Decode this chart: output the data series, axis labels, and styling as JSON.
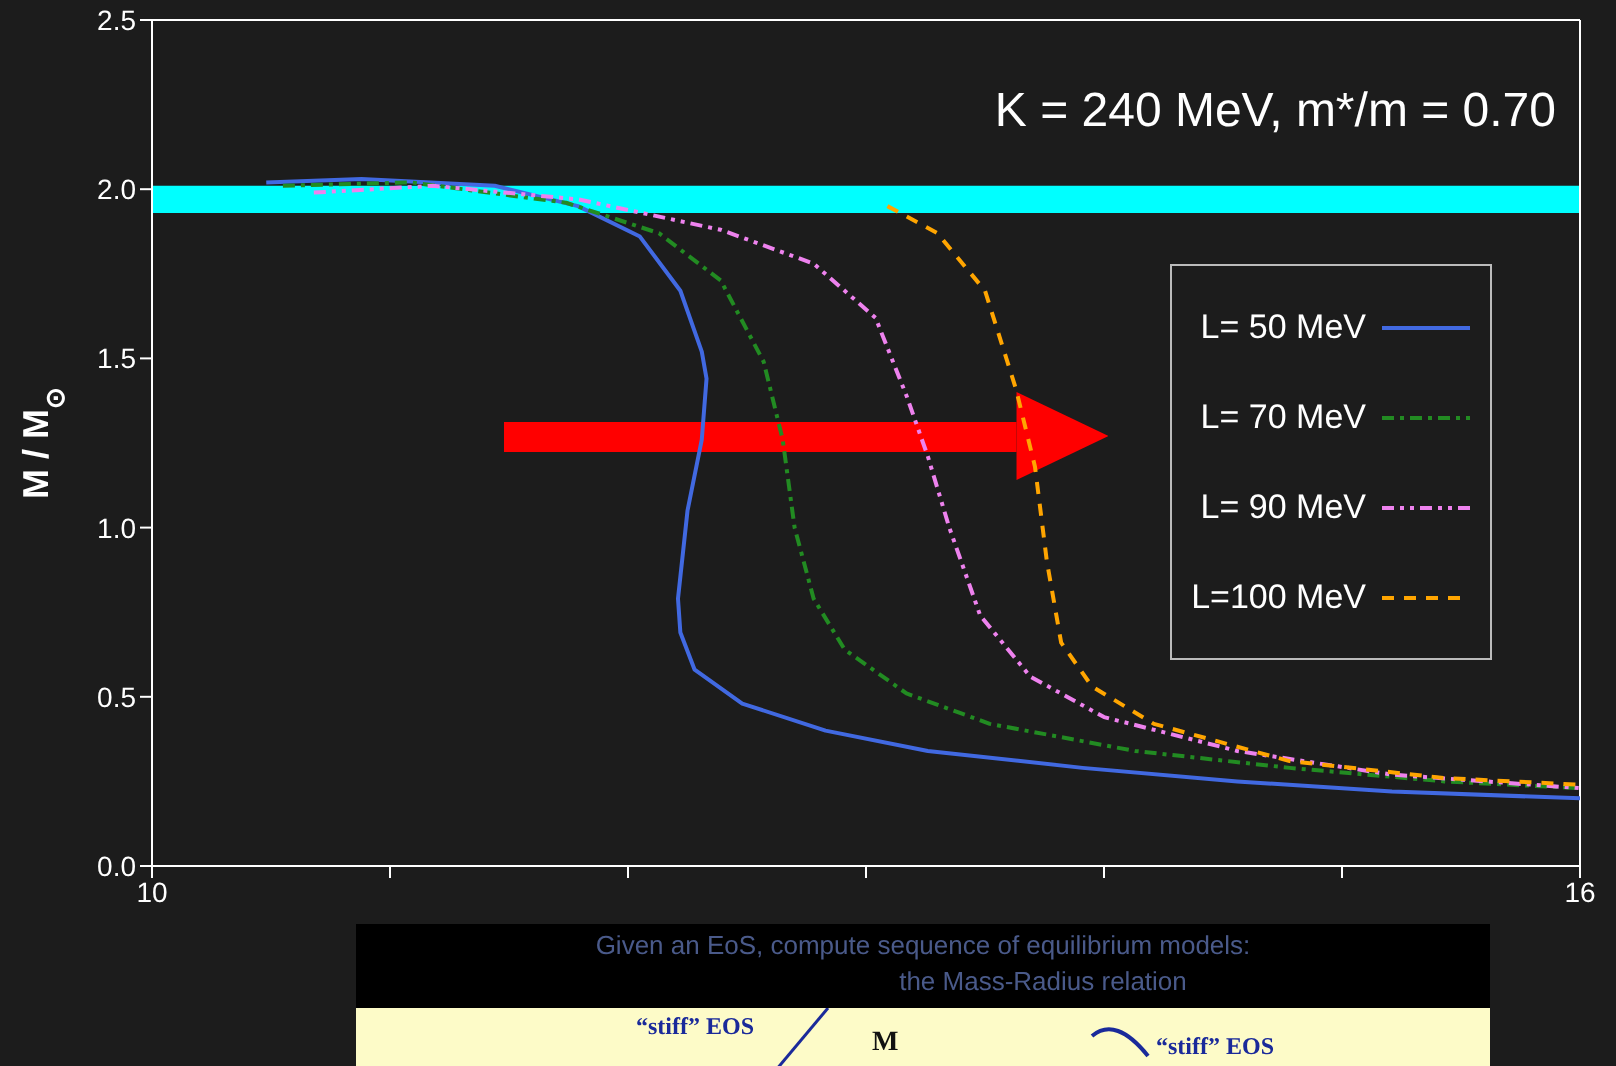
{
  "chart_data": {
    "type": "line",
    "ylabel": "M / M$_{⊙}$",
    "annotations": [
      "K = 240 MeV, m*/m = 0.70",
      "Given an EoS, compute sequence of equilibrium models:",
      "the Mass-Radius relation",
      "“stiff” EOS",
      "M",
      "“stiff” EOS"
    ],
    "xlim": [
      10,
      16
    ],
    "xticks": [
      10,
      {
        "value": 11,
        "label": null
      },
      {
        "value": 12,
        "label": null
      },
      {
        "value": 13,
        "label": null
      },
      {
        "value": 14,
        "label": null
      },
      {
        "value": 15,
        "label": null
      },
      16
    ],
    "ylim": [
      0,
      2.5
    ],
    "yticks": [
      {
        "value": 0,
        "label": "0.0"
      },
      {
        "value": 0.5,
        "label": "0.5"
      },
      {
        "value": 1,
        "label": "1.0"
      },
      {
        "value": 1.5,
        "label": "1.5"
      },
      {
        "value": 2,
        "label": "2.0"
      },
      {
        "value": 2.5,
        "label": "2.5"
      }
    ],
    "bands": [
      {
        "axis": "y",
        "from": 1.93,
        "to": 2.01,
        "color": "#00ffff"
      }
    ],
    "legend": "right",
    "marker": "none",
    "series": [
      {
        "name": "L= 50 MeV",
        "color": "#4169e1",
        "line_style": "solid",
        "x": [
          10.48,
          10.88,
          11.44,
          11.79,
          12.05,
          12.22,
          12.31,
          12.33,
          12.31,
          12.25,
          12.21,
          12.22,
          12.28,
          12.48,
          12.83,
          13.26,
          13.91,
          14.56,
          15.21,
          16
        ],
        "values": [
          2.02,
          2.03,
          2.01,
          1.95,
          1.86,
          1.7,
          1.52,
          1.44,
          1.26,
          1.05,
          0.79,
          0.69,
          0.58,
          0.48,
          0.4,
          0.34,
          0.29,
          0.25,
          0.22,
          0.2
        ]
      },
      {
        "name": "L= 70 MeV",
        "color": "#228b22",
        "line_style": "dashdot",
        "x": [
          10.55,
          11.09,
          11.74,
          12.13,
          12.39,
          12.57,
          12.65,
          12.7,
          12.78,
          12.91,
          13.17,
          13.52,
          14.13,
          14.78,
          15.43,
          16
        ],
        "values": [
          2.01,
          2.02,
          1.96,
          1.87,
          1.73,
          1.49,
          1.26,
          1.0,
          0.79,
          0.64,
          0.51,
          0.42,
          0.34,
          0.29,
          0.25,
          0.23
        ]
      },
      {
        "name": "L= 90 MeV",
        "color": "#ee82ee",
        "line_style": "dashdotdot",
        "x": [
          10.68,
          11.18,
          11.79,
          12.39,
          12.78,
          13.04,
          13.17,
          13.26,
          13.35,
          13.48,
          13.69,
          14.0,
          14.56,
          15.21,
          16
        ],
        "values": [
          1.99,
          2.01,
          1.97,
          1.88,
          1.78,
          1.62,
          1.39,
          1.21,
          1.0,
          0.74,
          0.56,
          0.44,
          0.34,
          0.27,
          0.23
        ]
      },
      {
        "name": "L=100 MeV",
        "color": "#ffa500",
        "line_style": "dashed",
        "x": [
          13.09,
          13.3,
          13.5,
          13.63,
          13.71,
          13.76,
          13.82,
          13.95,
          14.21,
          14.78,
          15.43,
          16
        ],
        "values": [
          1.95,
          1.87,
          1.7,
          1.41,
          1.18,
          0.9,
          0.66,
          0.53,
          0.42,
          0.31,
          0.26,
          0.24
        ]
      }
    ]
  }
}
